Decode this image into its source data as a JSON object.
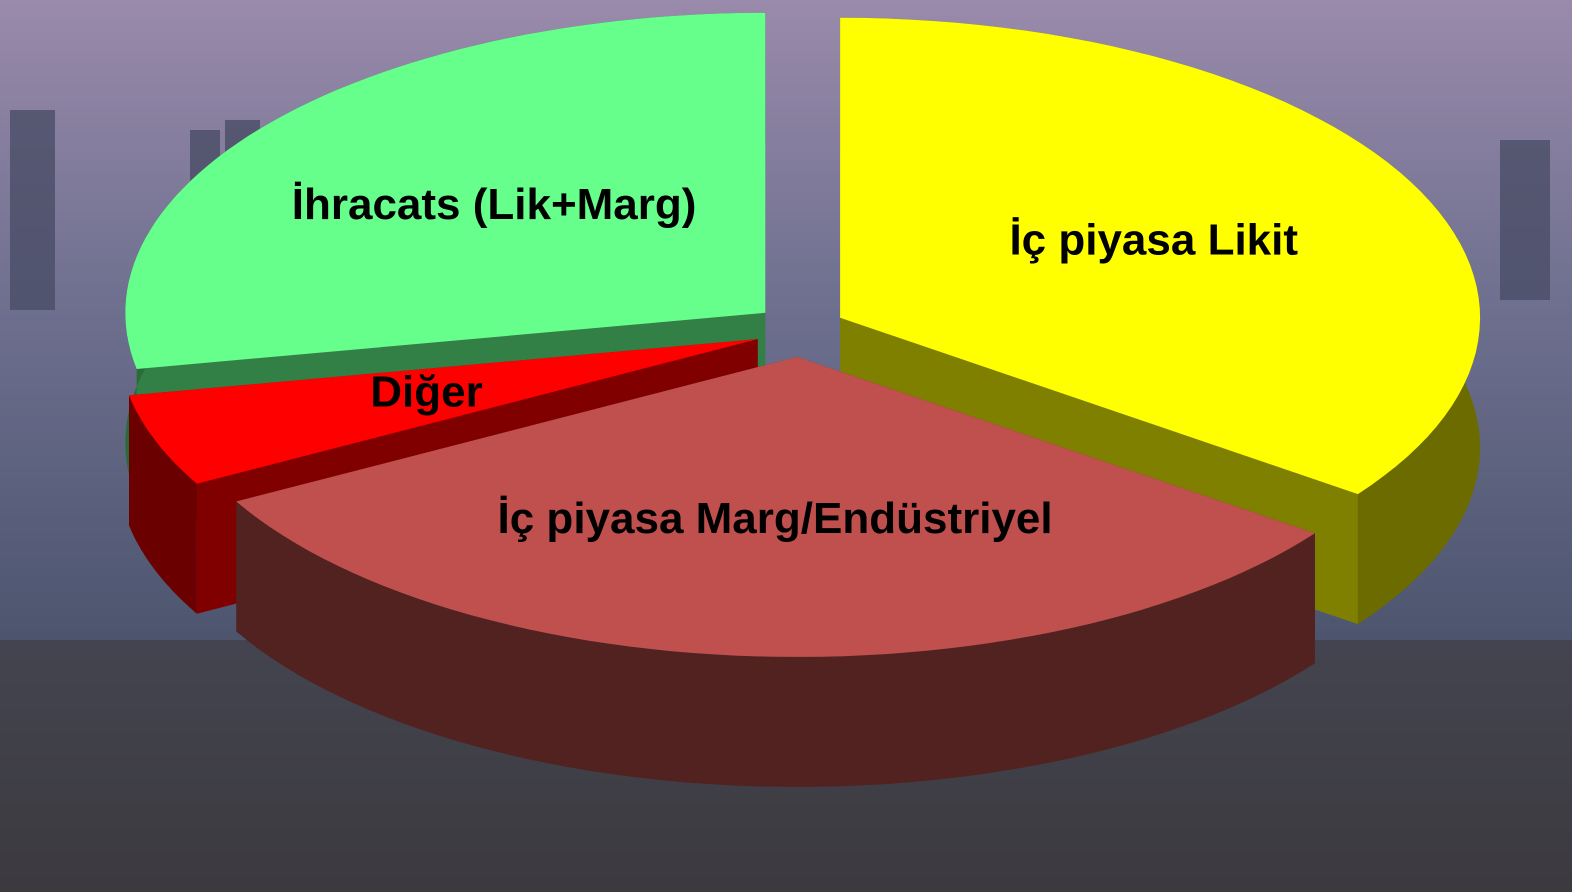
{
  "chart_data": {
    "type": "pie",
    "categories": [
      "İç piyasa Likit",
      "İç piyasa Marg/Endüstriyel",
      "Diğer",
      "İhracats (Lik+Marg)"
    ],
    "values": [
      35,
      32,
      5,
      28
    ],
    "colors": [
      "#ffff00",
      "#c0504d",
      "#ff0000",
      "#66ff8c"
    ]
  }
}
